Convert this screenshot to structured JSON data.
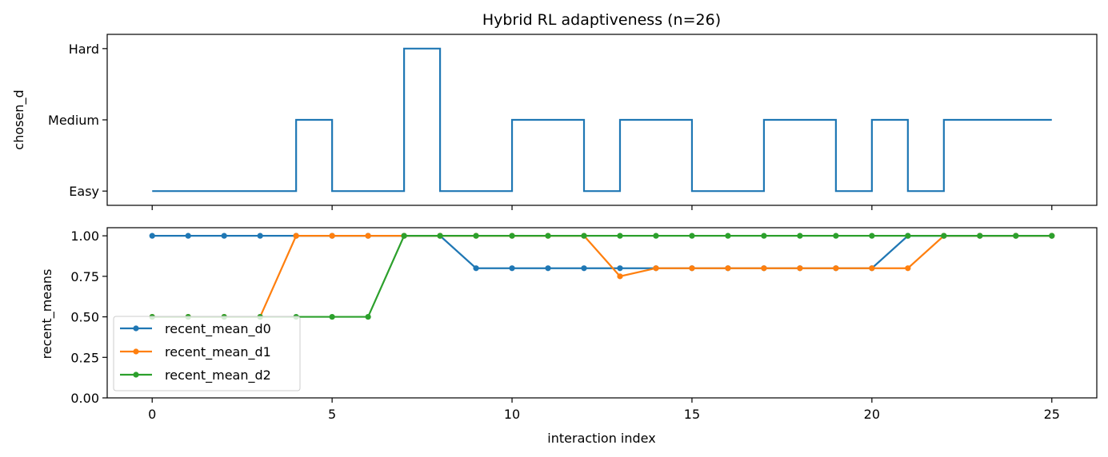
{
  "chart_data": [
    {
      "type": "line",
      "step": "post",
      "title": "Hybrid RL adaptiveness (n=26)",
      "ylabel": "chosen_d",
      "xlabel": "",
      "y_categories": [
        "Easy",
        "Medium",
        "Hard"
      ],
      "x": [
        0,
        1,
        2,
        3,
        4,
        5,
        6,
        7,
        8,
        9,
        10,
        11,
        12,
        13,
        14,
        15,
        16,
        17,
        18,
        19,
        20,
        21,
        22,
        23,
        24,
        25
      ],
      "series": [
        {
          "values": [
            0,
            0,
            0,
            0,
            1,
            0,
            0,
            2,
            0,
            0,
            1,
            1,
            0,
            1,
            1,
            0,
            0,
            1,
            1,
            0,
            1,
            0,
            1,
            1,
            1,
            1
          ],
          "color": "#1f77b4"
        }
      ],
      "xlim": [
        -1.25,
        26.25
      ],
      "ylim": [
        -0.2,
        2.2
      ],
      "xticks": [
        0,
        5,
        10,
        15,
        20,
        25
      ],
      "xticklabels_shown": false,
      "grid": false
    },
    {
      "type": "line",
      "title": "",
      "xlabel": "interaction index",
      "ylabel": "recent_means",
      "x": [
        0,
        1,
        2,
        3,
        4,
        5,
        6,
        7,
        8,
        9,
        10,
        11,
        12,
        13,
        14,
        15,
        16,
        17,
        18,
        19,
        20,
        21,
        22,
        23,
        24,
        25
      ],
      "series": [
        {
          "name": "recent_mean_d0",
          "color": "#1f77b4",
          "values": [
            1,
            1,
            1,
            1,
            1,
            1,
            1,
            1,
            1,
            0.8,
            0.8,
            0.8,
            0.8,
            0.8,
            0.8,
            0.8,
            0.8,
            0.8,
            0.8,
            0.8,
            0.8,
            1,
            1,
            1,
            1,
            1
          ]
        },
        {
          "name": "recent_mean_d1",
          "color": "#ff7f0e",
          "values": [
            0.5,
            0.5,
            0.5,
            0.5,
            1,
            1,
            1,
            1,
            1,
            1,
            1,
            1,
            1,
            0.75,
            0.8,
            0.8,
            0.8,
            0.8,
            0.8,
            0.8,
            0.8,
            0.8,
            1,
            1,
            1,
            1
          ]
        },
        {
          "name": "recent_mean_d2",
          "color": "#2ca02c",
          "values": [
            0.5,
            0.5,
            0.5,
            0.5,
            0.5,
            0.5,
            0.5,
            1,
            1,
            1,
            1,
            1,
            1,
            1,
            1,
            1,
            1,
            1,
            1,
            1,
            1,
            1,
            1,
            1,
            1,
            1
          ]
        }
      ],
      "xlim": [
        -1.25,
        26.25
      ],
      "ylim": [
        0,
        1.05
      ],
      "xticks": [
        0,
        5,
        10,
        15,
        20,
        25
      ],
      "xticklabels": [
        "0",
        "5",
        "10",
        "15",
        "20",
        "25"
      ],
      "yticks": [
        0,
        0.25,
        0.5,
        0.75,
        1.0
      ],
      "yticklabels": [
        "0.00",
        "0.25",
        "0.50",
        "0.75",
        "1.00"
      ],
      "legend": "lower-left",
      "grid": false
    }
  ]
}
